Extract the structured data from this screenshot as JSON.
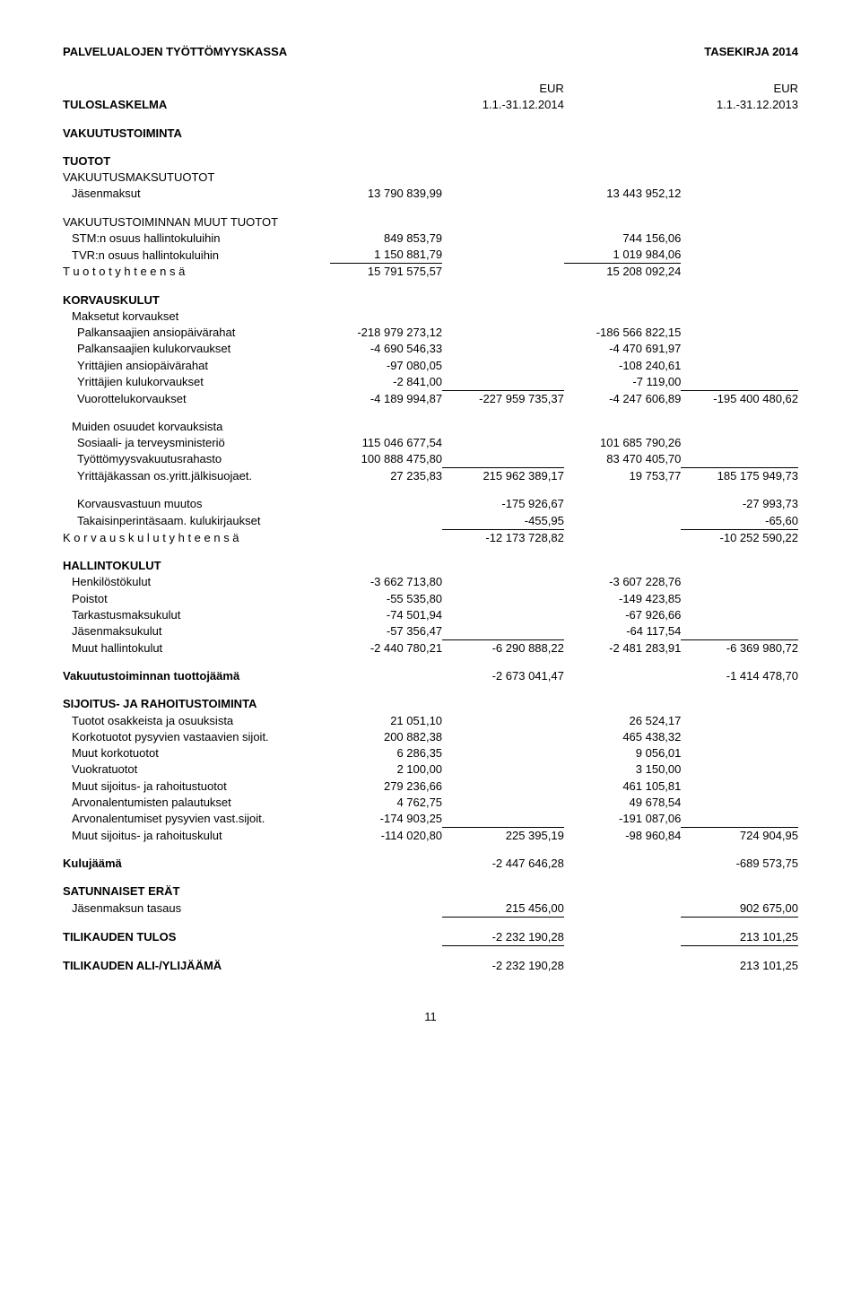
{
  "header": {
    "org": "PALVELUALOJEN TYÖTTÖMYYSKASSA",
    "doc": "TASEKIRJA 2014"
  },
  "cols": {
    "eur1": "EUR",
    "eur2": "EUR"
  },
  "tuloslaskelma": {
    "label": "TULOSLASKELMA",
    "period1": "1.1.-31.12.2014",
    "period2": "1.1.-31.12.2013"
  },
  "vakuutustoiminta": "VAKUUTUSTOIMINTA",
  "tuotot": {
    "title": "TUOTOT",
    "vmt": "VAKUUTUSMAKSUTUOTOT",
    "jasenmaksut": {
      "label": "Jäsenmaksut",
      "a": "13 790 839,99",
      "c": "13 443 952,12"
    },
    "muut": "VAKUUTUSTOIMINNAN MUUT TUOTOT",
    "stm": {
      "label": "STM:n osuus hallintokuluihin",
      "a": "849 853,79",
      "c": "744 156,06"
    },
    "tvr": {
      "label": "TVR:n osuus hallintokuluihin",
      "a": "1 150 881,79",
      "c": "1 019 984,06"
    },
    "yht": {
      "label": "T u o t o t  y h t e e n s ä",
      "a": "15 791 575,57",
      "c": "15 208 092,24"
    }
  },
  "korvauskulut": {
    "title": "KORVAUSKULUT",
    "maksetut": "Maksetut korvaukset",
    "r1": {
      "label": "Palkansaajien ansiopäivärahat",
      "a": "-218 979 273,12",
      "c": "-186 566 822,15"
    },
    "r2": {
      "label": "Palkansaajien kulukorvaukset",
      "a": "-4 690 546,33",
      "c": "-4 470 691,97"
    },
    "r3": {
      "label": "Yrittäjien ansiopäivärahat",
      "a": "-97 080,05",
      "c": "-108 240,61"
    },
    "r4": {
      "label": "Yrittäjien kulukorvaukset",
      "a": "-2 841,00",
      "c": "-7 119,00"
    },
    "r5": {
      "label": "Vuorottelukorvaukset",
      "a": "-4 189 994,87",
      "b": "-227 959 735,37",
      "c": "-4 247 606,89",
      "d": "-195 400 480,62"
    },
    "muiden": "Muiden osuudet korvauksista",
    "r6": {
      "label": "Sosiaali- ja terveysministeriö",
      "a": "115 046 677,54",
      "c": "101 685 790,26"
    },
    "r7": {
      "label": "Työttömyysvakuutusrahasto",
      "a": "100 888 475,80",
      "c": "83 470 405,70"
    },
    "r8": {
      "label": "Yrittäjäkassan os.yritt.jälkisuojaet.",
      "a": "27 235,83",
      "b": "215 962 389,17",
      "c": "19 753,77",
      "d": "185 175 949,73"
    },
    "r9": {
      "label": "Korvausvastuun muutos",
      "b": "-175 926,67",
      "d": "-27 993,73"
    },
    "r10": {
      "label": "Takaisinperintäsaam. kulukirjaukset",
      "b": "-455,95",
      "d": "-65,60"
    },
    "yht": {
      "label": "K o r v a u s k u l u t  y h t e e n s ä",
      "b": "-12 173 728,82",
      "d": "-10 252 590,22"
    }
  },
  "hallintokulut": {
    "title": "HALLINTOKULUT",
    "r1": {
      "label": "Henkilöstökulut",
      "a": "-3 662 713,80",
      "c": "-3 607 228,76"
    },
    "r2": {
      "label": "Poistot",
      "a": "-55 535,80",
      "c": "-149 423,85"
    },
    "r3": {
      "label": "Tarkastusmaksukulut",
      "a": "-74 501,94",
      "c": "-67 926,66"
    },
    "r4": {
      "label": "Jäsenmaksukulut",
      "a": "-57 356,47",
      "c": "-64 117,54"
    },
    "r5": {
      "label": "Muut hallintokulut",
      "a": "-2 440 780,21",
      "b": "-6 290 888,22",
      "c": "-2 481 283,91",
      "d": "-6 369 980,72"
    }
  },
  "vtj": {
    "label": "Vakuutustoiminnan tuottojäämä",
    "b": "-2 673 041,47",
    "d": "-1 414 478,70"
  },
  "sijoitus": {
    "title": "SIJOITUS- JA RAHOITUSTOIMINTA",
    "r1": {
      "label": "Tuotot osakkeista ja osuuksista",
      "a": "21 051,10",
      "c": "26 524,17"
    },
    "r2": {
      "label": "Korkotuotot pysyvien vastaavien sijoit.",
      "a": "200 882,38",
      "c": "465 438,32"
    },
    "r3": {
      "label": "Muut korkotuotot",
      "a": "6 286,35",
      "c": "9 056,01"
    },
    "r4": {
      "label": "Vuokratuotot",
      "a": "2 100,00",
      "c": "3 150,00"
    },
    "r5": {
      "label": "Muut sijoitus- ja rahoitustuotot",
      "a": "279 236,66",
      "c": "461 105,81"
    },
    "r6": {
      "label": "Arvonalentumisten palautukset",
      "a": "4 762,75",
      "c": "49 678,54"
    },
    "r7": {
      "label": "Arvonalentumiset pysyvien vast.sijoit.",
      "a": "-174 903,25",
      "c": "-191 087,06"
    },
    "r8": {
      "label": "Muut sijoitus- ja rahoituskulut",
      "a": "-114 020,80",
      "b": "225 395,19",
      "c": "-98 960,84",
      "d": "724 904,95"
    }
  },
  "kulujaama": {
    "label": "Kulujäämä",
    "b": "-2 447 646,28",
    "d": "-689 573,75"
  },
  "satunnaiset": {
    "title": "SATUNNAISET ERÄT",
    "r1": {
      "label": "Jäsenmaksun tasaus",
      "b": "215 456,00",
      "d": "902 675,00"
    }
  },
  "tilikauden_tulos": {
    "label": "TILIKAUDEN TULOS",
    "b": "-2 232 190,28",
    "d": "213 101,25"
  },
  "tilikauden_ali": {
    "label": "TILIKAUDEN ALI-/YLIJÄÄMÄ",
    "b": "-2 232 190,28",
    "d": "213 101,25"
  },
  "pagenum": "11"
}
